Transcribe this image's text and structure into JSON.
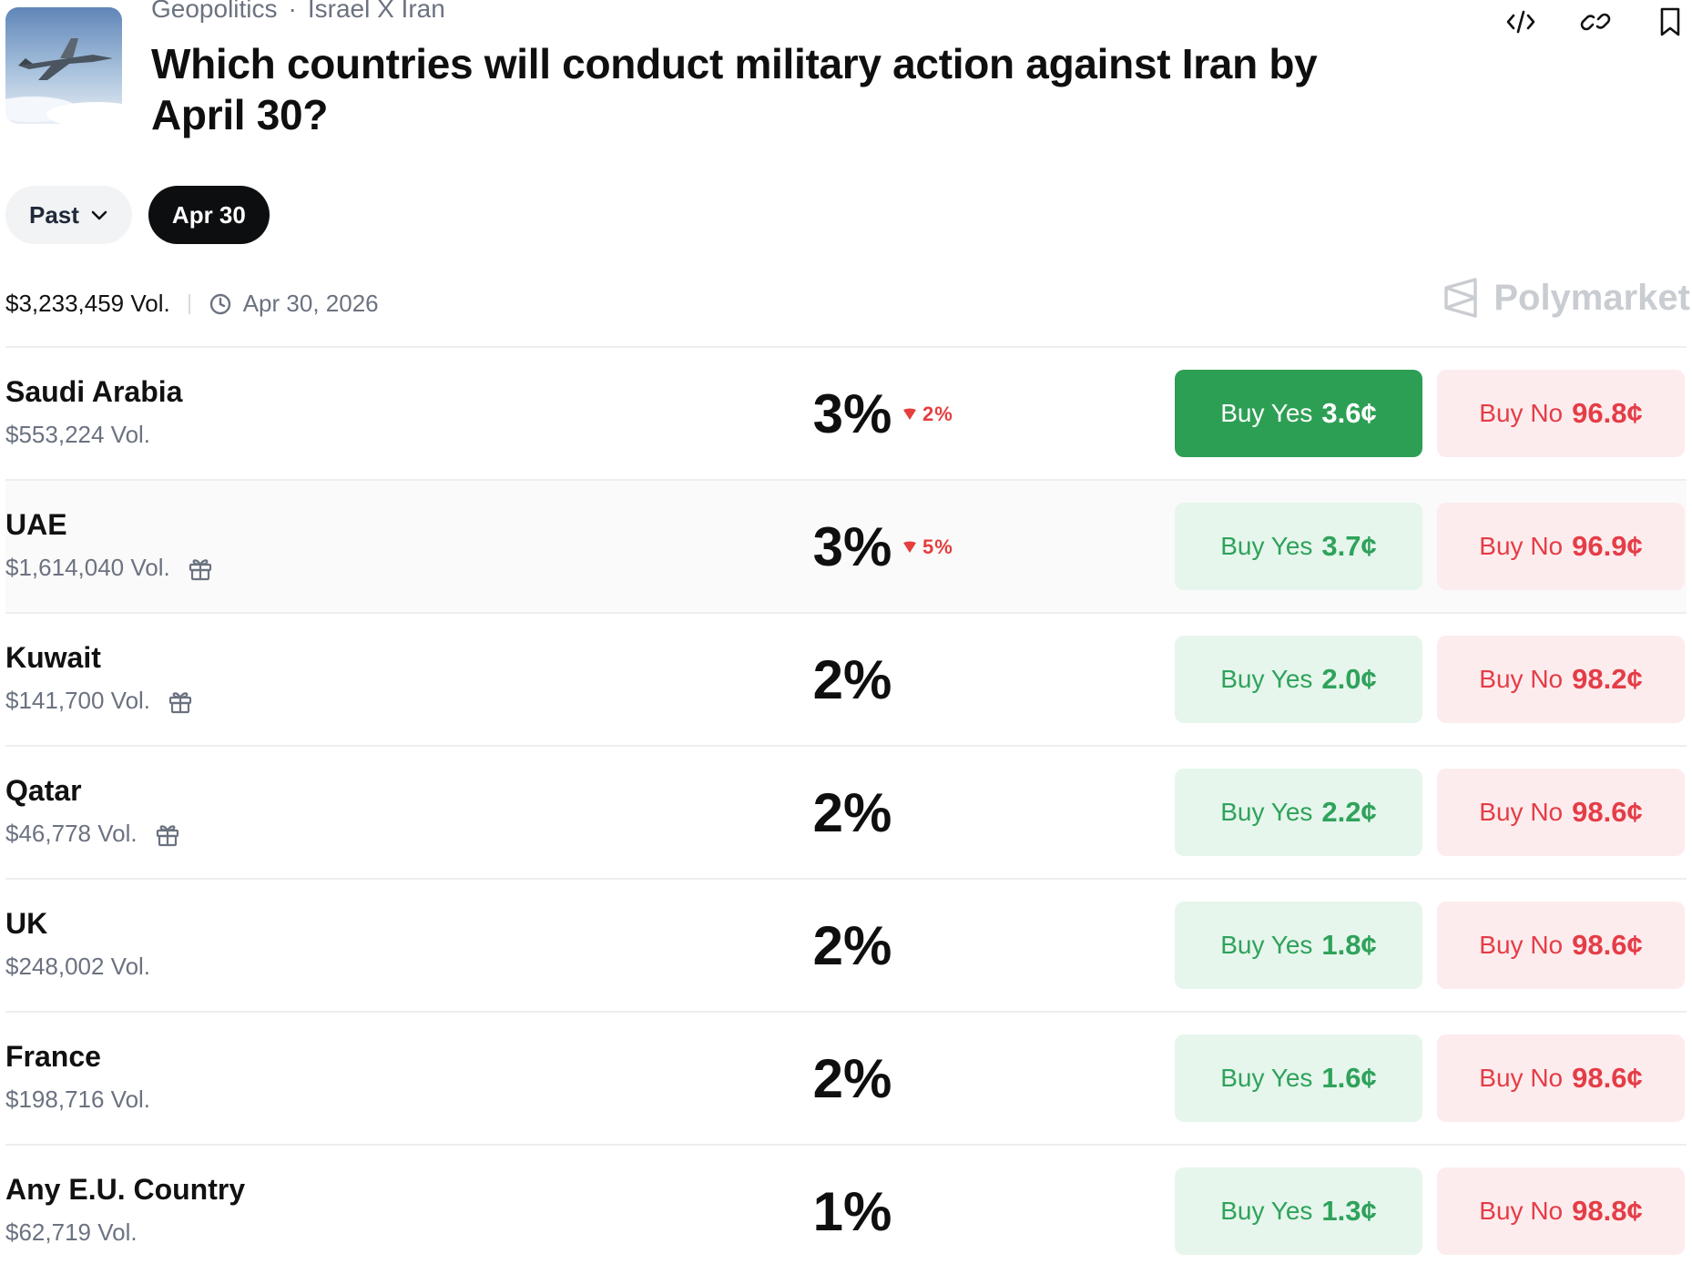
{
  "breadcrumb": {
    "category": "Geopolitics",
    "separator": "·",
    "topic": "Israel X Iran"
  },
  "title": "Which countries will conduct military action against Iran by April 30?",
  "filters": {
    "past_label": "Past",
    "active_label": "Apr 30"
  },
  "meta": {
    "volume": "$3,233,459 Vol.",
    "end_date": "Apr 30, 2026"
  },
  "brand": {
    "name": "Polymarket"
  },
  "colors": {
    "yes_green": "#2d9f54",
    "no_red": "#e43d47",
    "yes_bg": "#e6f6ec",
    "no_bg": "#fdeced",
    "change_down": "#e53e3e"
  },
  "markets": [
    {
      "name": "Saudi Arabia",
      "volume": "$553,224 Vol.",
      "chance": "3%",
      "change": "2%",
      "change_dir": "down",
      "gift": false,
      "yes_label": "Buy Yes",
      "yes_price": "3.6¢",
      "no_label": "Buy No",
      "no_price": "96.8¢"
    },
    {
      "name": "UAE",
      "volume": "$1,614,040 Vol.",
      "chance": "3%",
      "change": "5%",
      "change_dir": "down",
      "gift": true,
      "yes_label": "Buy Yes",
      "yes_price": "3.7¢",
      "no_label": "Buy No",
      "no_price": "96.9¢"
    },
    {
      "name": "Kuwait",
      "volume": "$141,700 Vol.",
      "chance": "2%",
      "change": "",
      "gift": true,
      "yes_label": "Buy Yes",
      "yes_price": "2.0¢",
      "no_label": "Buy No",
      "no_price": "98.2¢"
    },
    {
      "name": "Qatar",
      "volume": "$46,778 Vol.",
      "chance": "2%",
      "change": "",
      "gift": true,
      "yes_label": "Buy Yes",
      "yes_price": "2.2¢",
      "no_label": "Buy No",
      "no_price": "98.6¢"
    },
    {
      "name": "UK",
      "volume": "$248,002 Vol.",
      "chance": "2%",
      "change": "",
      "gift": false,
      "yes_label": "Buy Yes",
      "yes_price": "1.8¢",
      "no_label": "Buy No",
      "no_price": "98.6¢"
    },
    {
      "name": "France",
      "volume": "$198,716 Vol.",
      "chance": "2%",
      "change": "",
      "gift": false,
      "yes_label": "Buy Yes",
      "yes_price": "1.6¢",
      "no_label": "Buy No",
      "no_price": "98.6¢"
    },
    {
      "name": "Any E.U. Country",
      "volume": "$62,719 Vol.",
      "chance": "1%",
      "change": "",
      "gift": false,
      "yes_label": "Buy Yes",
      "yes_price": "1.3¢",
      "no_label": "Buy No",
      "no_price": "98.8¢"
    }
  ]
}
